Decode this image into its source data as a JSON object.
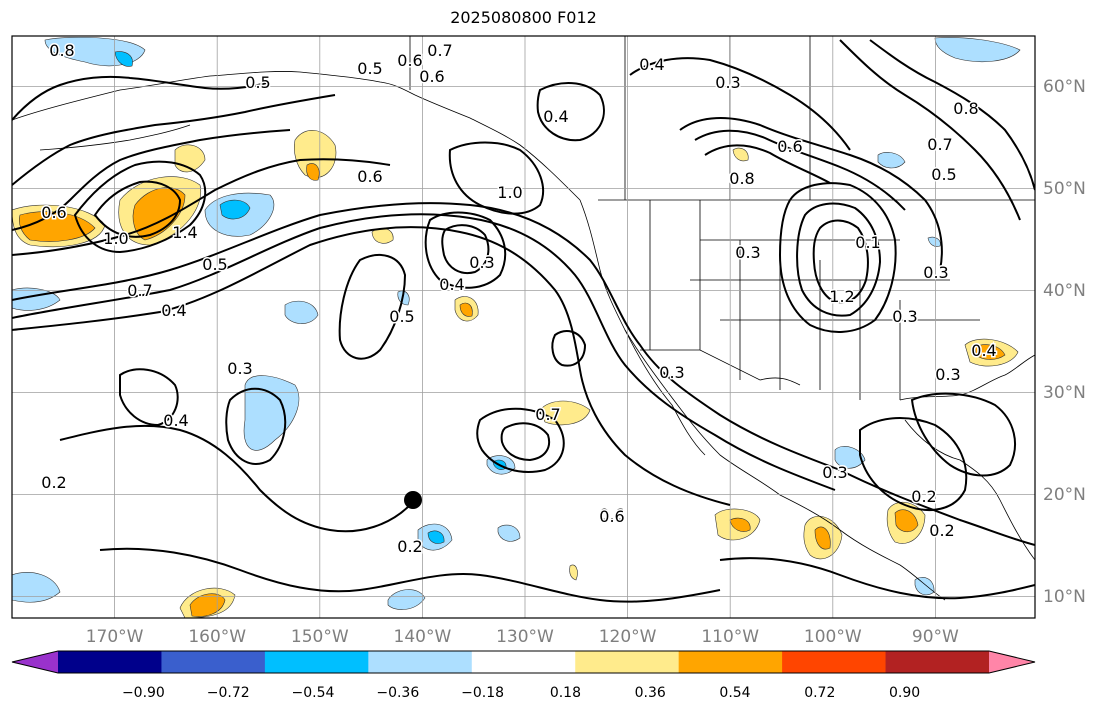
{
  "title": "2025080800 F012",
  "longitude_labels": [
    "170°W",
    "160°W",
    "150°W",
    "140°W",
    "130°W",
    "120°W",
    "110°W",
    "100°W",
    "90°W"
  ],
  "latitude_labels": [
    "60°N",
    "50°N",
    "40°N",
    "30°N",
    "20°N",
    "10°N"
  ],
  "colorbar": {
    "colors": [
      "#9932CC",
      "#00008B",
      "#3A5FCD",
      "#00BFFF",
      "#ADDFFF",
      "#FFFFFF",
      "#FFEB8C",
      "#FFA500",
      "#FF4500",
      "#B22222",
      "#FF85A8"
    ],
    "tick_labels": [
      "−0.90",
      "−0.72",
      "−0.54",
      "−0.36",
      "−0.18",
      "0.18",
      "0.36",
      "0.54",
      "0.72",
      "0.90"
    ]
  },
  "contour_labels": [
    {
      "text": "0.8"
    },
    {
      "text": "0.5"
    },
    {
      "text": "0.5"
    },
    {
      "text": "0.7"
    },
    {
      "text": "0.6"
    },
    {
      "text": "0.6"
    },
    {
      "text": "0.4"
    },
    {
      "text": "0.3"
    },
    {
      "text": "0.4"
    },
    {
      "text": "0.6"
    },
    {
      "text": "0.8"
    },
    {
      "text": "0.7"
    },
    {
      "text": "0.6"
    },
    {
      "text": "0.5"
    },
    {
      "text": "0.6"
    },
    {
      "text": "1.0"
    },
    {
      "text": "1.4"
    },
    {
      "text": "0.5"
    },
    {
      "text": "0.7"
    },
    {
      "text": "0.4"
    },
    {
      "text": "0.6"
    },
    {
      "text": "1.0"
    },
    {
      "text": "0.3"
    },
    {
      "text": "0.4"
    },
    {
      "text": "0.5"
    },
    {
      "text": "0.3"
    },
    {
      "text": "0.3"
    },
    {
      "text": "1.2"
    },
    {
      "text": "0.1"
    },
    {
      "text": "0.3"
    },
    {
      "text": "0.3"
    },
    {
      "text": "0.3"
    },
    {
      "text": "0.4"
    },
    {
      "text": "0.7"
    },
    {
      "text": "0.6"
    },
    {
      "text": "0.3"
    },
    {
      "text": "0.2"
    },
    {
      "text": "0.2"
    },
    {
      "text": "0.2"
    },
    {
      "text": "0.2"
    },
    {
      "text": "0.4"
    },
    {
      "text": "0.3"
    },
    {
      "text": "0.8"
    }
  ]
}
